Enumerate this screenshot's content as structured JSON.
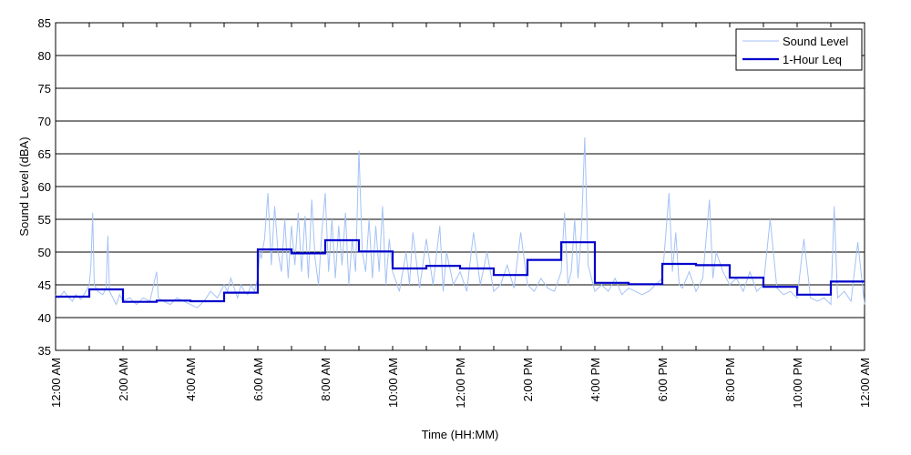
{
  "chart_data": {
    "type": "line",
    "xlabel": "Time (HH:MM)",
    "ylabel": "Sound Level (dBA)",
    "xlim": [
      0,
      24
    ],
    "ylim": [
      35,
      85
    ],
    "yticks": [
      35,
      40,
      45,
      50,
      55,
      60,
      65,
      70,
      75,
      80,
      85
    ],
    "xticks": [
      0,
      2,
      4,
      6,
      8,
      10,
      12,
      14,
      16,
      18,
      20,
      22,
      24
    ],
    "minor_xticks": [
      1,
      3,
      5,
      7,
      9,
      11,
      13,
      15,
      17,
      19,
      21,
      23
    ],
    "xtick_labels": [
      "12:00 AM",
      "2:00 AM",
      "4:00 AM",
      "6:00 AM",
      "8:00 AM",
      "10:00 AM",
      "12:00 PM",
      "2:00 PM",
      "4:00 PM",
      "6:00 PM",
      "8:00 PM",
      "10:00 PM",
      "12:00 AM"
    ],
    "grid": "horizontal",
    "legend_position": "top-right",
    "series": [
      {
        "name": "Sound Level",
        "color": "#a4c2f4",
        "x": [
          0,
          0.1,
          0.25,
          0.4,
          0.5,
          0.6,
          0.75,
          0.9,
          1.0,
          1.05,
          1.1,
          1.15,
          1.25,
          1.4,
          1.5,
          1.55,
          1.6,
          1.7,
          1.8,
          1.9,
          2.0,
          2.2,
          2.4,
          2.6,
          2.8,
          2.95,
          3.0,
          3.05,
          3.2,
          3.4,
          3.6,
          3.8,
          4.0,
          4.2,
          4.4,
          4.6,
          4.8,
          5.0,
          5.1,
          5.2,
          5.3,
          5.4,
          5.5,
          5.6,
          5.7,
          5.8,
          5.9,
          6.0,
          6.05,
          6.1,
          6.2,
          6.3,
          6.4,
          6.5,
          6.6,
          6.7,
          6.8,
          6.9,
          7.0,
          7.1,
          7.2,
          7.3,
          7.4,
          7.5,
          7.6,
          7.7,
          7.8,
          7.9,
          8.0,
          8.1,
          8.2,
          8.3,
          8.4,
          8.5,
          8.6,
          8.7,
          8.8,
          8.9,
          9.0,
          9.1,
          9.2,
          9.3,
          9.4,
          9.5,
          9.6,
          9.7,
          9.8,
          9.9,
          10.0,
          10.2,
          10.4,
          10.5,
          10.6,
          10.8,
          11.0,
          11.2,
          11.4,
          11.5,
          11.6,
          11.8,
          12.0,
          12.2,
          12.4,
          12.6,
          12.8,
          13.0,
          13.2,
          13.4,
          13.6,
          13.8,
          14.0,
          14.2,
          14.4,
          14.6,
          14.8,
          15.0,
          15.1,
          15.2,
          15.3,
          15.4,
          15.5,
          15.6,
          15.7,
          15.8,
          15.9,
          16.0,
          16.2,
          16.4,
          16.6,
          16.8,
          17.0,
          17.2,
          17.4,
          17.6,
          17.8,
          18.0,
          18.2,
          18.3,
          18.4,
          18.5,
          18.6,
          18.8,
          19.0,
          19.2,
          19.4,
          19.5,
          19.6,
          19.8,
          20.0,
          20.2,
          20.4,
          20.6,
          20.8,
          21.0,
          21.2,
          21.4,
          21.6,
          21.8,
          22.0,
          22.2,
          22.4,
          22.6,
          22.8,
          23.0,
          23.1,
          23.2,
          23.4,
          23.6,
          23.8,
          24.0
        ],
        "values": [
          43.5,
          43.0,
          44.0,
          43.0,
          42.5,
          43.5,
          42.8,
          44.0,
          45.0,
          48.0,
          56.0,
          45.0,
          44.0,
          43.5,
          44.5,
          52.5,
          44.0,
          43.0,
          42.0,
          43.5,
          42.5,
          43.0,
          42.0,
          43.0,
          42.5,
          46.0,
          47.0,
          43.0,
          42.5,
          42.0,
          43.0,
          42.5,
          42.0,
          41.5,
          42.5,
          44.0,
          43.0,
          45.0,
          44.0,
          46.0,
          44.5,
          43.0,
          45.0,
          44.0,
          43.5,
          45.0,
          44.0,
          46.0,
          50.0,
          49.0,
          52.0,
          59.0,
          48.0,
          57.0,
          50.0,
          47.0,
          55.0,
          46.0,
          54.0,
          48.0,
          56.0,
          47.0,
          55.5,
          46.0,
          58.0,
          49.0,
          45.0,
          53.0,
          59.0,
          47.0,
          55.0,
          46.0,
          54.0,
          48.0,
          56.0,
          45.0,
          52.0,
          47.0,
          65.5,
          50.0,
          47.0,
          55.0,
          46.0,
          54.0,
          47.0,
          57.0,
          45.0,
          52.0,
          47.0,
          44.0,
          50.0,
          45.0,
          53.0,
          44.5,
          52.0,
          45.0,
          54.0,
          44.0,
          50.0,
          45.0,
          47.0,
          44.0,
          53.0,
          45.0,
          50.0,
          44.0,
          45.0,
          48.0,
          44.5,
          53.0,
          45.0,
          44.0,
          46.0,
          44.5,
          44.0,
          47.0,
          56.0,
          45.0,
          47.0,
          55.0,
          46.0,
          53.0,
          67.5,
          48.0,
          46.0,
          44.0,
          45.0,
          44.0,
          46.0,
          43.5,
          44.5,
          44.0,
          43.5,
          44.0,
          45.0,
          46.0,
          59.0,
          47.0,
          53.0,
          45.0,
          44.5,
          47.0,
          44.0,
          46.0,
          58.0,
          46.0,
          50.0,
          47.0,
          45.0,
          46.0,
          44.0,
          47.0,
          44.0,
          45.0,
          55.0,
          44.5,
          43.5,
          44.0,
          43.0,
          52.0,
          43.0,
          42.5,
          43.0,
          42.0,
          57.0,
          43.0,
          44.0,
          42.5,
          51.5,
          42.0
        ]
      },
      {
        "name": "1-Hour Leq",
        "color": "#0000cc",
        "values": [
          43.2,
          44.3,
          42.4,
          42.6,
          42.5,
          43.8,
          50.4,
          49.8,
          51.8,
          50.1,
          47.5,
          47.9,
          47.5,
          46.5,
          48.8,
          51.5,
          45.3,
          45.1,
          48.2,
          48.0,
          46.1,
          44.7,
          43.5,
          45.5
        ]
      }
    ]
  }
}
